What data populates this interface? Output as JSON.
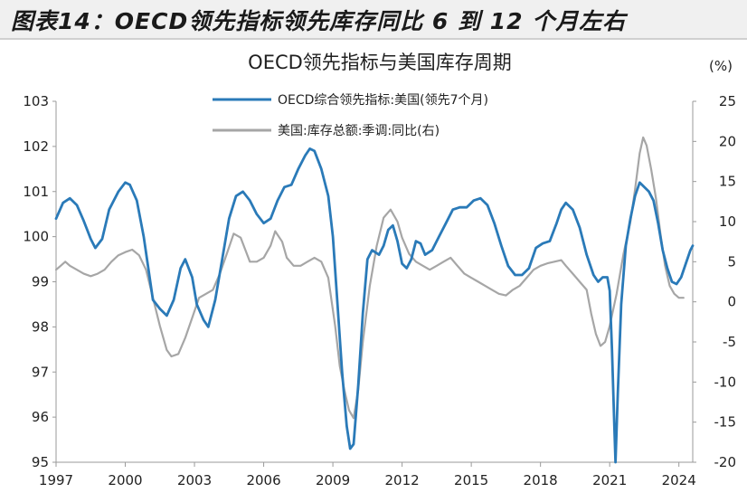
{
  "header": {
    "title": "图表14：OECD领先指标领先库存同比 6 到 12 个月左右"
  },
  "chart_data": {
    "type": "line",
    "title": "OECD领先指标与美国库存周期",
    "right_axis_unit": "(%)",
    "x_tick_labels": [
      "1997",
      "2000",
      "2003",
      "2006",
      "2009",
      "2012",
      "2015",
      "2018",
      "2021",
      "2024"
    ],
    "x_range": [
      1997,
      2024.6
    ],
    "y_left": {
      "range": [
        95,
        103
      ],
      "ticks": [
        "95",
        "96",
        "97",
        "98",
        "99",
        "100",
        "101",
        "102",
        "103"
      ]
    },
    "y_right": {
      "range": [
        -20,
        25
      ],
      "ticks": [
        "-20",
        "-15",
        "-10",
        "-5",
        "0",
        "5",
        "10",
        "15",
        "20",
        "25"
      ]
    },
    "legend_position": "top-center",
    "grid": false,
    "colors": {
      "oecd": "#2a7ab8",
      "inventory": "#a6a6a6"
    },
    "series": [
      {
        "name": "OECD综合领先指标:美国(领先7个月)",
        "axis": "left",
        "points": [
          [
            1997.0,
            100.4
          ],
          [
            1997.3,
            100.75
          ],
          [
            1997.6,
            100.85
          ],
          [
            1997.9,
            100.7
          ],
          [
            1998.2,
            100.35
          ],
          [
            1998.5,
            99.95
          ],
          [
            1998.7,
            99.75
          ],
          [
            1999.0,
            99.95
          ],
          [
            1999.3,
            100.6
          ],
          [
            1999.7,
            101.0
          ],
          [
            2000.0,
            101.2
          ],
          [
            2000.2,
            101.15
          ],
          [
            2000.5,
            100.8
          ],
          [
            2000.8,
            100.0
          ],
          [
            2001.0,
            99.3
          ],
          [
            2001.2,
            98.6
          ],
          [
            2001.5,
            98.4
          ],
          [
            2001.8,
            98.25
          ],
          [
            2002.1,
            98.6
          ],
          [
            2002.4,
            99.3
          ],
          [
            2002.6,
            99.5
          ],
          [
            2002.9,
            99.1
          ],
          [
            2003.1,
            98.5
          ],
          [
            2003.4,
            98.15
          ],
          [
            2003.6,
            98.0
          ],
          [
            2003.9,
            98.6
          ],
          [
            2004.2,
            99.5
          ],
          [
            2004.5,
            100.4
          ],
          [
            2004.8,
            100.9
          ],
          [
            2005.1,
            101.0
          ],
          [
            2005.4,
            100.8
          ],
          [
            2005.7,
            100.5
          ],
          [
            2006.0,
            100.3
          ],
          [
            2006.3,
            100.4
          ],
          [
            2006.6,
            100.8
          ],
          [
            2006.9,
            101.1
          ],
          [
            2007.2,
            101.15
          ],
          [
            2007.5,
            101.5
          ],
          [
            2007.8,
            101.8
          ],
          [
            2008.0,
            101.95
          ],
          [
            2008.2,
            101.9
          ],
          [
            2008.5,
            101.5
          ],
          [
            2008.8,
            100.9
          ],
          [
            2009.0,
            100.0
          ],
          [
            2009.2,
            98.5
          ],
          [
            2009.4,
            97.0
          ],
          [
            2009.6,
            95.8
          ],
          [
            2009.75,
            95.3
          ],
          [
            2009.9,
            95.4
          ],
          [
            2010.1,
            96.7
          ],
          [
            2010.3,
            98.3
          ],
          [
            2010.5,
            99.5
          ],
          [
            2010.7,
            99.7
          ],
          [
            2011.0,
            99.6
          ],
          [
            2011.2,
            99.8
          ],
          [
            2011.4,
            100.15
          ],
          [
            2011.6,
            100.25
          ],
          [
            2011.8,
            99.9
          ],
          [
            2012.0,
            99.4
          ],
          [
            2012.2,
            99.3
          ],
          [
            2012.4,
            99.5
          ],
          [
            2012.6,
            99.9
          ],
          [
            2012.8,
            99.85
          ],
          [
            2013.0,
            99.6
          ],
          [
            2013.3,
            99.7
          ],
          [
            2013.6,
            100.0
          ],
          [
            2013.9,
            100.3
          ],
          [
            2014.2,
            100.6
          ],
          [
            2014.5,
            100.65
          ],
          [
            2014.8,
            100.65
          ],
          [
            2015.1,
            100.8
          ],
          [
            2015.4,
            100.85
          ],
          [
            2015.7,
            100.7
          ],
          [
            2016.0,
            100.3
          ],
          [
            2016.3,
            99.8
          ],
          [
            2016.6,
            99.35
          ],
          [
            2016.9,
            99.15
          ],
          [
            2017.2,
            99.15
          ],
          [
            2017.5,
            99.3
          ],
          [
            2017.8,
            99.75
          ],
          [
            2018.1,
            99.85
          ],
          [
            2018.4,
            99.9
          ],
          [
            2018.7,
            100.3
          ],
          [
            2018.9,
            100.6
          ],
          [
            2019.1,
            100.75
          ],
          [
            2019.4,
            100.6
          ],
          [
            2019.7,
            100.2
          ],
          [
            2020.0,
            99.6
          ],
          [
            2020.3,
            99.15
          ],
          [
            2020.5,
            99.0
          ],
          [
            2020.7,
            99.1
          ],
          [
            2020.9,
            99.1
          ],
          [
            2021.0,
            98.8
          ],
          [
            2021.1,
            97.5
          ],
          [
            2021.2,
            95.8
          ],
          [
            2021.25,
            95.0
          ],
          [
            2021.35,
            96.5
          ],
          [
            2021.5,
            98.5
          ],
          [
            2021.7,
            99.8
          ],
          [
            2021.9,
            100.4
          ],
          [
            2022.1,
            100.9
          ],
          [
            2022.3,
            101.2
          ],
          [
            2022.5,
            101.1
          ],
          [
            2022.7,
            101.0
          ],
          [
            2022.9,
            100.8
          ],
          [
            2023.1,
            100.3
          ],
          [
            2023.3,
            99.7
          ],
          [
            2023.5,
            99.3
          ],
          [
            2023.7,
            99.0
          ],
          [
            2023.9,
            98.95
          ],
          [
            2024.1,
            99.1
          ],
          [
            2024.3,
            99.4
          ],
          [
            2024.5,
            99.7
          ],
          [
            2024.6,
            99.8
          ]
        ]
      },
      {
        "name": "美国:库存总额:季调:同比(右)",
        "axis": "right",
        "points": [
          [
            1997.0,
            4.0
          ],
          [
            1997.2,
            4.5
          ],
          [
            1997.4,
            5.0
          ],
          [
            1997.6,
            4.5
          ],
          [
            1997.9,
            4.0
          ],
          [
            1998.2,
            3.5
          ],
          [
            1998.5,
            3.2
          ],
          [
            1998.8,
            3.5
          ],
          [
            1999.1,
            4.0
          ],
          [
            1999.4,
            5.0
          ],
          [
            1999.7,
            5.8
          ],
          [
            2000.0,
            6.2
          ],
          [
            2000.3,
            6.5
          ],
          [
            2000.6,
            5.8
          ],
          [
            2000.9,
            4.0
          ],
          [
            2001.2,
            0.5
          ],
          [
            2001.5,
            -3.0
          ],
          [
            2001.8,
            -6.0
          ],
          [
            2002.0,
            -6.8
          ],
          [
            2002.3,
            -6.5
          ],
          [
            2002.6,
            -4.5
          ],
          [
            2002.9,
            -2.0
          ],
          [
            2003.2,
            0.5
          ],
          [
            2003.5,
            1.0
          ],
          [
            2003.8,
            1.5
          ],
          [
            2004.1,
            3.5
          ],
          [
            2004.4,
            6.0
          ],
          [
            2004.7,
            8.5
          ],
          [
            2005.0,
            8.0
          ],
          [
            2005.2,
            6.5
          ],
          [
            2005.4,
            5.0
          ],
          [
            2005.7,
            5.0
          ],
          [
            2006.0,
            5.5
          ],
          [
            2006.3,
            7.0
          ],
          [
            2006.5,
            8.8
          ],
          [
            2006.8,
            7.5
          ],
          [
            2007.0,
            5.5
          ],
          [
            2007.3,
            4.5
          ],
          [
            2007.6,
            4.5
          ],
          [
            2007.9,
            5.0
          ],
          [
            2008.2,
            5.5
          ],
          [
            2008.5,
            5.0
          ],
          [
            2008.8,
            3.0
          ],
          [
            2009.1,
            -3.0
          ],
          [
            2009.3,
            -8.0
          ],
          [
            2009.5,
            -11.0
          ],
          [
            2009.7,
            -13.5
          ],
          [
            2009.9,
            -14.5
          ],
          [
            2010.1,
            -11.0
          ],
          [
            2010.3,
            -5.0
          ],
          [
            2010.6,
            2.0
          ],
          [
            2010.9,
            7.0
          ],
          [
            2011.2,
            10.5
          ],
          [
            2011.5,
            11.5
          ],
          [
            2011.8,
            10.0
          ],
          [
            2012.0,
            8.0
          ],
          [
            2012.3,
            6.0
          ],
          [
            2012.6,
            5.0
          ],
          [
            2012.9,
            4.5
          ],
          [
            2013.2,
            4.0
          ],
          [
            2013.5,
            4.5
          ],
          [
            2013.8,
            5.0
          ],
          [
            2014.1,
            5.5
          ],
          [
            2014.4,
            4.5
          ],
          [
            2014.7,
            3.5
          ],
          [
            2015.0,
            3.0
          ],
          [
            2015.3,
            2.5
          ],
          [
            2015.6,
            2.0
          ],
          [
            2015.9,
            1.5
          ],
          [
            2016.2,
            1.0
          ],
          [
            2016.5,
            0.8
          ],
          [
            2016.8,
            1.5
          ],
          [
            2017.1,
            2.0
          ],
          [
            2017.4,
            3.0
          ],
          [
            2017.7,
            4.0
          ],
          [
            2018.0,
            4.5
          ],
          [
            2018.3,
            4.8
          ],
          [
            2018.6,
            5.0
          ],
          [
            2018.9,
            5.2
          ],
          [
            2019.1,
            4.5
          ],
          [
            2019.4,
            3.5
          ],
          [
            2019.7,
            2.5
          ],
          [
            2020.0,
            1.5
          ],
          [
            2020.2,
            -1.5
          ],
          [
            2020.4,
            -4.0
          ],
          [
            2020.6,
            -5.5
          ],
          [
            2020.8,
            -5.0
          ],
          [
            2021.0,
            -3.0
          ],
          [
            2021.3,
            1.0
          ],
          [
            2021.6,
            6.0
          ],
          [
            2021.9,
            10.0
          ],
          [
            2022.1,
            14.0
          ],
          [
            2022.3,
            18.5
          ],
          [
            2022.45,
            20.5
          ],
          [
            2022.6,
            19.5
          ],
          [
            2022.8,
            16.5
          ],
          [
            2023.0,
            13.0
          ],
          [
            2023.2,
            8.5
          ],
          [
            2023.4,
            4.5
          ],
          [
            2023.6,
            2.0
          ],
          [
            2023.8,
            1.0
          ],
          [
            2024.0,
            0.5
          ],
          [
            2024.2,
            0.5
          ]
        ]
      }
    ]
  }
}
